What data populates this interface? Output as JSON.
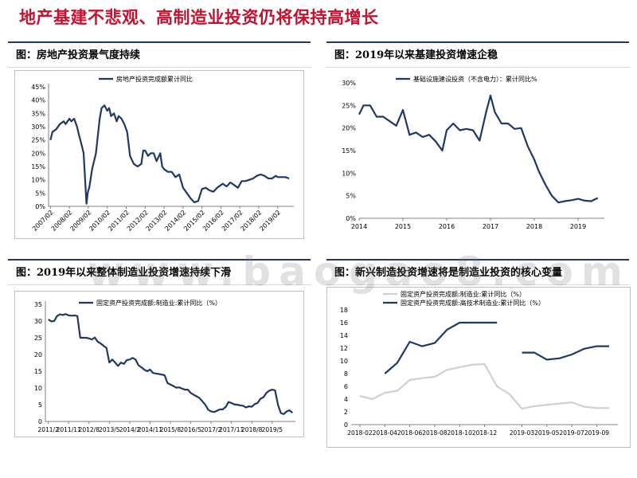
{
  "slide": {
    "title": "地产基建不悲观、高制造业投资仍将保持高增长",
    "title_color": "#c8102e",
    "line_color": "#1f3864",
    "watermark": "www.baogao8.com"
  },
  "panels": [
    {
      "title": "图：房地产投资景气度持续"
    },
    {
      "title": "图：2019年以来基建投资增速企稳"
    },
    {
      "title": "图：2019年以来整体制造业投资增速持续下滑"
    },
    {
      "title": "图：新兴制造投资增速将是制造业投资的核心变量"
    }
  ],
  "chart_data": [
    {
      "type": "line",
      "series": [
        {
          "name": "房地产投资完成额累计同比",
          "color": "#1f3864",
          "x": [
            2007.1,
            2007.2,
            2007.4,
            2007.6,
            2007.8,
            2007.9,
            2008.1,
            2008.2,
            2008.35,
            2008.5,
            2008.6,
            2008.75,
            2008.85,
            2009.0,
            2009.07,
            2009.1,
            2009.15,
            2009.3,
            2009.5,
            2009.7,
            2009.8,
            2009.95,
            2010.1,
            2010.2,
            2010.3,
            2010.45,
            2010.6,
            2010.7,
            2010.85,
            2011.0,
            2011.15,
            2011.3,
            2011.5,
            2011.7,
            2011.9,
            2012.0,
            2012.1,
            2012.25,
            2012.4,
            2012.55,
            2012.7,
            2012.9,
            2013.0,
            2013.1,
            2013.3,
            2013.5,
            2013.7,
            2013.9,
            2014.1,
            2014.3,
            2014.5,
            2014.7,
            2014.9,
            2015.1,
            2015.3,
            2015.5,
            2015.7,
            2015.9,
            2016.1,
            2016.2,
            2016.4,
            2016.6,
            2016.8,
            2017.0,
            2017.2,
            2017.4,
            2017.6,
            2017.8,
            2018.0,
            2018.2,
            2018.4,
            2018.6,
            2018.8,
            2019.0,
            2019.1,
            2019.3,
            2019.5,
            2019.7
          ],
          "y": [
            25,
            28,
            29,
            31,
            32,
            31,
            33,
            32,
            33,
            30,
            27,
            23,
            20,
            1,
            5,
            6,
            7,
            14,
            20,
            33,
            37,
            38,
            36,
            37,
            34,
            35,
            32,
            34,
            33,
            31,
            28,
            19,
            16,
            15,
            16,
            21,
            21,
            19,
            20,
            20,
            17,
            20,
            15,
            14,
            13,
            13,
            11,
            12,
            7,
            5,
            3,
            1.5,
            2,
            6.5,
            7,
            6,
            5.5,
            7,
            8,
            8.5,
            7.5,
            9,
            8,
            7,
            9.5,
            9.5,
            10,
            10.5,
            11.5,
            12,
            11.5,
            10.5,
            10.5,
            11.5,
            11,
            11,
            11,
            10.5
          ]
        }
      ],
      "x_ticks": [
        "2007/02",
        "2008/02",
        "2009/02",
        "2010/02",
        "2011/02",
        "2012/02",
        "2013/02",
        "2014/02",
        "2015/02",
        "2016/02",
        "2017/02",
        "2018/02",
        "2019/02"
      ],
      "y_ticks": [
        "0%",
        "5%",
        "10%",
        "15%",
        "20%",
        "25%",
        "30%",
        "35%",
        "40%",
        "45%"
      ],
      "ylim": [
        0,
        45
      ],
      "legend": "top"
    },
    {
      "type": "line",
      "series": [
        {
          "name": "基础设施建设投资（不含电力）：累计同比%",
          "color": "#1f3864",
          "x": [
            2014.0,
            2014.1,
            2014.25,
            2014.4,
            2014.55,
            2014.7,
            2014.85,
            2015.0,
            2015.15,
            2015.3,
            2015.45,
            2015.6,
            2015.75,
            2015.9,
            2016.0,
            2016.15,
            2016.3,
            2016.45,
            2016.6,
            2016.75,
            2016.9,
            2017.0,
            2017.1,
            2017.25,
            2017.4,
            2017.55,
            2017.7,
            2017.85,
            2018.0,
            2018.1,
            2018.25,
            2018.4,
            2018.55,
            2018.7,
            2018.85,
            2019.0,
            2019.15,
            2019.3,
            2019.45
          ],
          "y": [
            23,
            25,
            25,
            22.5,
            22.5,
            21.5,
            20.5,
            24,
            18.5,
            19,
            18,
            18.5,
            17,
            15,
            19.5,
            21,
            19.5,
            19.8,
            19.5,
            17.2,
            23.5,
            27.2,
            23.5,
            21,
            21,
            19.8,
            20,
            16,
            13,
            10.5,
            7.5,
            5,
            3.5,
            3.8,
            4,
            4.3,
            3.9,
            3.8,
            4.5
          ]
        }
      ],
      "x_ticks": [
        "2014",
        "2015",
        "2016",
        "2017",
        "2018",
        "2019"
      ],
      "y_ticks": [
        "0%",
        "5%",
        "10%",
        "15%",
        "20%",
        "25%",
        "30%"
      ],
      "ylim": [
        0,
        30
      ],
      "legend": "top"
    },
    {
      "type": "line",
      "series": [
        {
          "name": "固定资产投资完成额:制造业:累计同比（%）",
          "color": "#1f3864",
          "x": [
            0,
            1,
            2,
            3,
            4,
            5,
            6,
            7,
            8,
            9,
            10,
            11,
            12,
            13,
            14,
            15,
            16,
            17,
            18,
            19,
            20,
            21,
            22,
            23,
            24,
            25,
            26,
            27,
            28,
            29,
            30,
            31,
            32,
            33,
            34,
            35,
            36,
            37,
            38,
            39,
            40,
            41,
            42,
            43,
            44,
            45,
            46,
            47,
            48,
            49,
            50,
            51,
            52,
            53,
            54,
            55,
            56,
            57,
            58,
            59,
            60,
            61,
            62,
            63,
            64,
            65,
            66,
            67,
            68,
            69,
            70,
            71,
            72,
            73,
            74,
            75,
            76,
            77,
            78,
            79,
            80,
            81,
            82,
            83,
            84
          ],
          "y": [
            30.5,
            29.9,
            30,
            31.5,
            32,
            31.8,
            32.1,
            31.7,
            31.6,
            31.7,
            31.5,
            25,
            25,
            25,
            24.8,
            24.5,
            25.1,
            23.8,
            23.3,
            22.6,
            22,
            17.6,
            18.5,
            17.6,
            16.6,
            17.6,
            17.2,
            18.3,
            18.5,
            19,
            18.5,
            16.8,
            16.2,
            15.5,
            15,
            15.5,
            14.5,
            14.3,
            14.2,
            14,
            13.8,
            11.5,
            11,
            10.6,
            10.1,
            10.2,
            9.8,
            9.5,
            9.5,
            8.5,
            8,
            7.5,
            7,
            6,
            5,
            3.5,
            3,
            2.8,
            3.2,
            3.6,
            3.6,
            4.3,
            5.8,
            5.5,
            5.1,
            5,
            4.8,
            4.7,
            4.2,
            4.5,
            4.4,
            5.2,
            5.5,
            6.8,
            7.2,
            8.5,
            9.2,
            9.5,
            9.3,
            5,
            2.5,
            2.2,
            3,
            3.3,
            2.6
          ]
        }
      ],
      "x_ticks": [
        "2011/2",
        "2011/11",
        "2012/8",
        "2013/5",
        "2014/2",
        "2014/11",
        "2015/8",
        "2016/5",
        "2017/2",
        "2017/11",
        "2018/8",
        "2019/5"
      ],
      "y_ticks": [
        "0",
        "5",
        "10",
        "15",
        "20",
        "25",
        "30",
        "35"
      ],
      "ylim": [
        0,
        35
      ],
      "legend": "top"
    },
    {
      "type": "line",
      "series": [
        {
          "name": "固定资产投资完成额:制造业:累计同比（%）",
          "color": "#d0d0d0",
          "x": [
            0,
            1,
            2,
            3,
            4,
            5,
            6,
            7,
            8,
            9,
            10,
            11,
            12,
            13,
            14,
            15,
            16,
            17,
            18,
            19,
            20
          ],
          "y": [
            4.5,
            4,
            5,
            5.3,
            7,
            7.3,
            7.5,
            8.6,
            9,
            9.4,
            9.5,
            6,
            4.8,
            2.5,
            2.9,
            3.1,
            3.3,
            3.5,
            2.8,
            2.6,
            2.6
          ]
        },
        {
          "name": "固定资产投资完成额:高技术制造业:累计同比（%）",
          "color": "#1f3864",
          "x": [
            2,
            3,
            4,
            5,
            6,
            7,
            8,
            9,
            10,
            11,
            null,
            13,
            14,
            15,
            16,
            17,
            18,
            19,
            20
          ],
          "y": [
            8,
            9.7,
            13,
            12.3,
            12.8,
            14.9,
            16,
            16,
            16,
            16,
            null,
            11.3,
            11.3,
            10.2,
            10.4,
            11,
            11.9,
            12.3,
            12.3
          ]
        }
      ],
      "x_ticks": [
        "2018-02",
        "2018-04",
        "2018-06",
        "2018-08",
        "2018-10",
        "2018-12",
        "2019-03",
        "2019-05",
        "2019-07",
        "2019-09"
      ],
      "y_ticks": [
        "0",
        "2",
        "4",
        "6",
        "8",
        "10",
        "12",
        "14",
        "16",
        "18"
      ],
      "ylim": [
        0,
        18
      ],
      "legend": "top"
    }
  ]
}
